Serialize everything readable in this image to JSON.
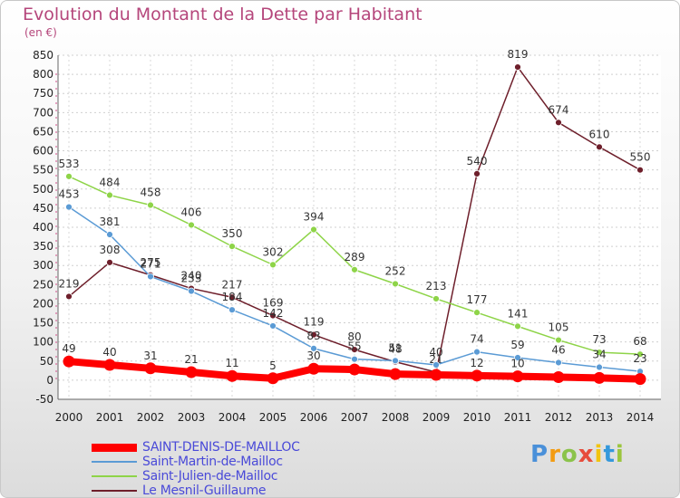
{
  "title": "Evolution du Montant de la Dette par Habitant",
  "unit": "(en €)",
  "logo": "Proxiti",
  "chart_data": {
    "type": "line",
    "title": "Evolution du Montant de la Dette par Habitant",
    "ylabel": "(en €)",
    "ylim": [
      -50,
      850
    ],
    "yticks": [
      -50,
      0,
      50,
      100,
      150,
      200,
      250,
      300,
      350,
      400,
      450,
      500,
      550,
      600,
      650,
      700,
      750,
      800,
      850
    ],
    "x": [
      "2000",
      "2001",
      "2002",
      "2003",
      "2004",
      "2005",
      "2006",
      "2007",
      "2008",
      "2009",
      "2010",
      "2011",
      "2012",
      "2013",
      "2014"
    ],
    "legend_position": "bottom-left",
    "series": [
      {
        "name": "Le Mesnil-Guillaume",
        "color": "#6e1f2b",
        "values": [
          219,
          308,
          275,
          240,
          217,
          169,
          119,
          80,
          48,
          21,
          540,
          819,
          674,
          610,
          550
        ],
        "labels": [
          "219",
          "308",
          "275",
          "240",
          "217",
          "169",
          "119",
          "80",
          "48",
          "21",
          "540",
          "819",
          "674",
          "610",
          "550"
        ]
      },
      {
        "name": "Saint-Julien-de-Mailloc",
        "color": "#8ed448",
        "values": [
          533,
          484,
          458,
          406,
          350,
          302,
          394,
          289,
          252,
          213,
          177,
          141,
          105,
          73,
          68
        ],
        "labels": [
          "533",
          "484",
          "458",
          "406",
          "350",
          "302",
          "394",
          "289",
          "252",
          "213",
          "177",
          "141",
          "105",
          "73",
          "68"
        ]
      },
      {
        "name": "Saint-Martin-de-Mailloc",
        "color": "#5b9bd5",
        "values": [
          453,
          381,
          271,
          233,
          184,
          142,
          83,
          55,
          51,
          40,
          74,
          59,
          46,
          34,
          23
        ],
        "labels": [
          "453",
          "381",
          "271",
          "233",
          "184",
          "142",
          "83",
          "55",
          "51",
          "40",
          "74",
          "59",
          "46",
          "34",
          "23"
        ]
      },
      {
        "name": "SAINT-DENIS-DE-MAILLOC",
        "color": "#ff0000",
        "values": [
          49,
          40,
          31,
          21,
          11,
          5,
          30,
          28,
          16,
          14,
          12,
          10,
          8,
          6,
          3
        ],
        "labels": [
          "49",
          "40",
          "31",
          "21",
          "11",
          "5",
          "30",
          "",
          "",
          "",
          "12",
          "10",
          "",
          "",
          ""
        ]
      }
    ]
  }
}
